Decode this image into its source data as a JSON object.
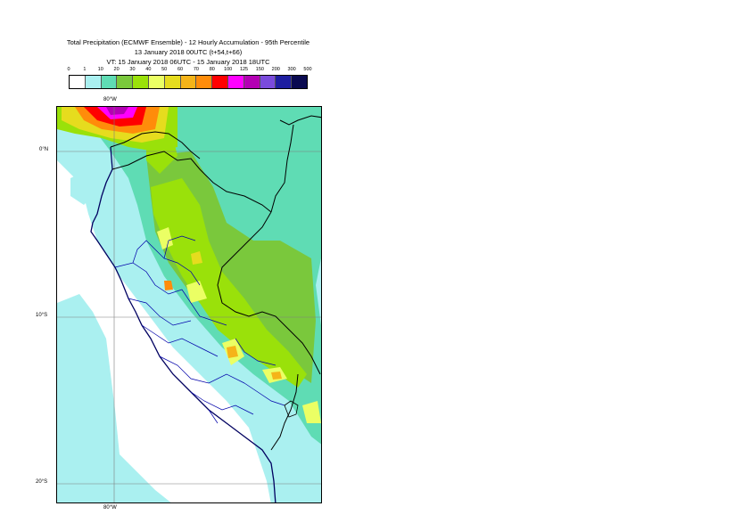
{
  "title": {
    "line1": "Total Precipitation (ECMWF Ensemble) - 12 Hourly Accumulation - 95th Percentile",
    "line2": "13 January 2018 00UTC (t+54,t+66)",
    "line3": "VT: 15 January 2018 06UTC - 15 January 2018 18UTC"
  },
  "legend": {
    "ticks": [
      "0",
      "1",
      "10",
      "20",
      "30",
      "40",
      "50",
      "60",
      "70",
      "80",
      "100",
      "125",
      "150",
      "200",
      "300",
      "500"
    ],
    "colors": [
      "#ffffff",
      "#aaf0f0",
      "#5fdcb4",
      "#7ac83c",
      "#9ae10a",
      "#ebff64",
      "#e6dc1e",
      "#f5b419",
      "#ff8c0a",
      "#ff0000",
      "#ff00ff",
      "#b400b4",
      "#7a4bdc",
      "#1e1ea0",
      "#0a0a50"
    ]
  },
  "map": {
    "lon_label_top": "80°W",
    "lon_label_bottom": "80°W",
    "lat_labels": [
      "0°N",
      "10°S",
      "20°S"
    ]
  }
}
